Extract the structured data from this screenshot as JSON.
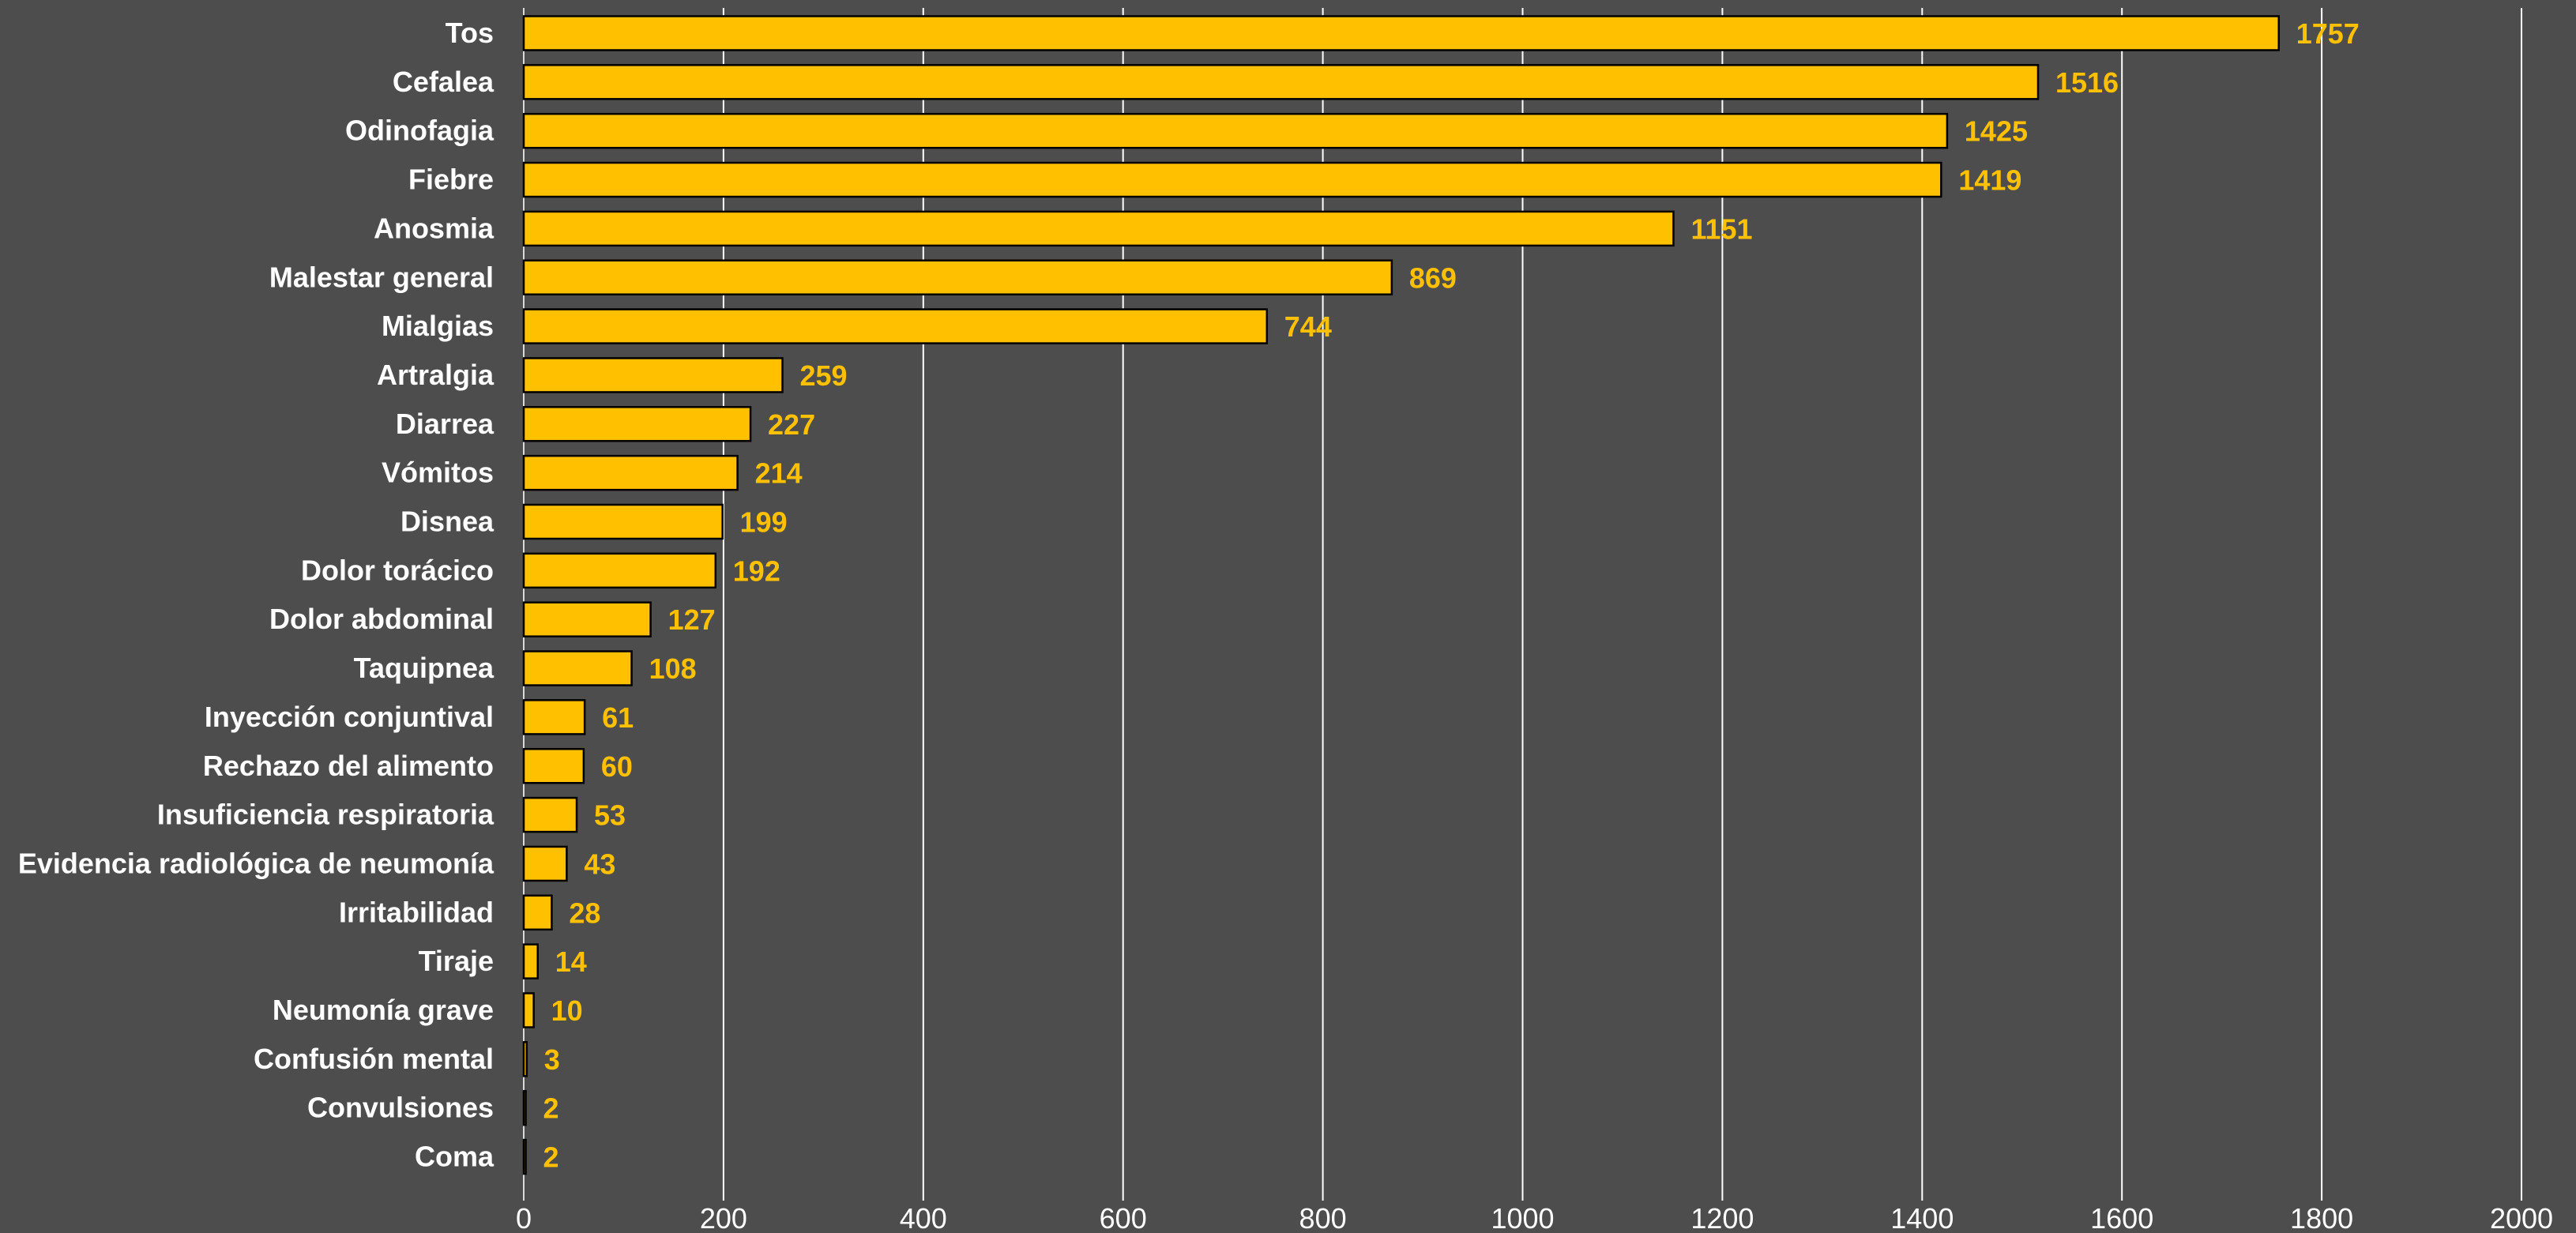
{
  "chart_data": {
    "type": "bar",
    "orientation": "horizontal",
    "categories": [
      "Tos",
      "Cefalea",
      "Odinofagia",
      "Fiebre",
      "Anosmia",
      "Malestar general",
      "Mialgias",
      "Artralgia",
      "Diarrea",
      "Vómitos",
      "Disnea",
      "Dolor torácico",
      "Dolor abdominal",
      "Taquipnea",
      "Inyección conjuntival",
      "Rechazo del alimento",
      "Insuficiencia respiratoria",
      "Evidencia radiológica de neumonía",
      "Irritabilidad",
      "Tiraje",
      "Neumonía grave",
      "Confusión mental",
      "Convulsiones",
      "Coma"
    ],
    "values": [
      1757,
      1516,
      1425,
      1419,
      1151,
      869,
      744,
      259,
      227,
      214,
      199,
      192,
      127,
      108,
      61,
      60,
      53,
      43,
      28,
      14,
      10,
      3,
      2,
      2
    ],
    "data_labels": [
      "1757",
      "1516",
      "1425",
      "1419",
      "1151",
      "869",
      "744",
      "259",
      "227",
      "214",
      "199",
      "192",
      "127",
      "108",
      "61",
      "60",
      "53",
      "43",
      "28",
      "14",
      "10",
      "3",
      "2",
      "2"
    ],
    "x_ticks": [
      "0",
      "200",
      "400",
      "600",
      "800",
      "1000",
      "1200",
      "1400",
      "1600",
      "1800",
      "2000"
    ],
    "xlim": [
      0,
      2000
    ],
    "grid": true,
    "title": "",
    "xlabel": "",
    "ylabel": "",
    "colors": {
      "background": "#4d4d4d",
      "bar": "#ffc000",
      "bar_border": "#000000",
      "value_label": "#ffc000",
      "category_label": "#ffffff",
      "tick_label": "#ffffff",
      "gridline": "#ffffff"
    }
  }
}
